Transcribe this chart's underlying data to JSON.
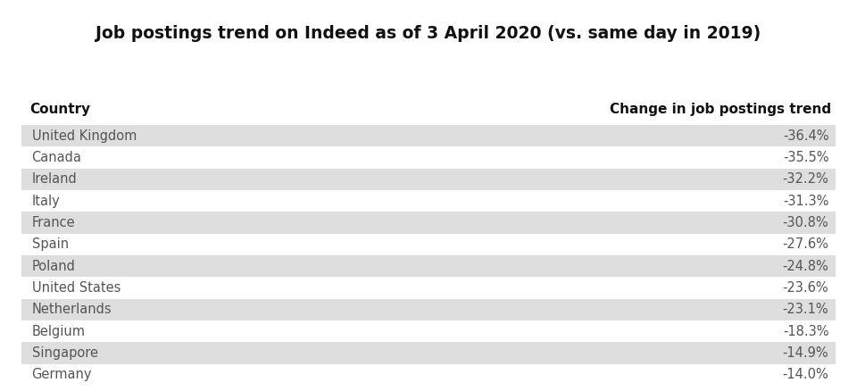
{
  "title": "Job postings trend on Indeed as of 3 April 2020 (vs. same day in 2019)",
  "col1_header": "Country",
  "col2_header": "Change in job postings trend",
  "rows": [
    [
      "United Kingdom",
      "-36.4%"
    ],
    [
      "Canada",
      "-35.5%"
    ],
    [
      "Ireland",
      "-32.2%"
    ],
    [
      "Italy",
      "-31.3%"
    ],
    [
      "France",
      "-30.8%"
    ],
    [
      "Spain",
      "-27.6%"
    ],
    [
      "Poland",
      "-24.8%"
    ],
    [
      "United States",
      "-23.6%"
    ],
    [
      "Netherlands",
      "-23.1%"
    ],
    [
      "Belgium",
      "-18.3%"
    ],
    [
      "Singapore",
      "-14.9%"
    ],
    [
      "Germany",
      "-14.0%"
    ]
  ],
  "shaded_row_color": "#dedede",
  "white_row_color": "#ffffff",
  "background_color": "#ffffff",
  "title_fontsize": 13.5,
  "header_fontsize": 11,
  "row_fontsize": 10.5,
  "title_color": "#111111",
  "header_color": "#111111",
  "row_text_color": "#555555",
  "fig_width": 9.6,
  "fig_height": 4.38,
  "dpi": 100
}
